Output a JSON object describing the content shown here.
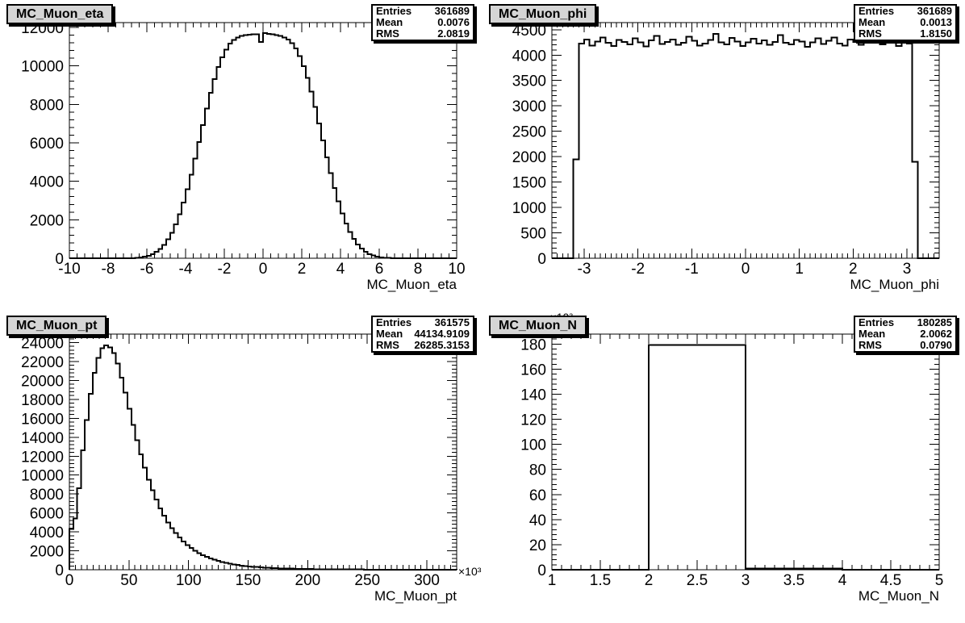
{
  "ui": {
    "stats_labels": {
      "entries": "Entries",
      "mean": "Mean",
      "rms": "RMS"
    },
    "colors": {
      "line": "#000000",
      "title_pave_bg": "#d5d5d5",
      "pave_border": "#000000",
      "background": "#ffffff"
    }
  },
  "chart_data": [
    {
      "type": "bar",
      "style": "step-histogram",
      "title": "MC_Muon_eta",
      "xlabel": "MC_Muon_eta",
      "ylabel": "",
      "xlim": [
        -10,
        10
      ],
      "ylim": [
        0,
        12250
      ],
      "x_major": 2,
      "x_minor_div": 5,
      "y_major": 2000,
      "y_minor_div": 5,
      "x_exponent": "",
      "y_exponent": "",
      "grid": false,
      "legend": "none",
      "bin_start": -10,
      "bin_width": 0.2,
      "values": [
        0,
        0,
        0,
        0,
        0,
        0,
        0,
        0,
        0,
        0,
        0,
        0,
        0,
        0,
        0,
        0,
        0,
        20,
        45,
        80,
        135,
        215,
        330,
        490,
        700,
        980,
        1330,
        1760,
        2280,
        2890,
        3580,
        4350,
        5180,
        6050,
        6930,
        7790,
        8600,
        9320,
        9940,
        10450,
        10850,
        11150,
        11350,
        11480,
        11560,
        11600,
        11630,
        11640,
        11650,
        11250,
        11700,
        11660,
        11640,
        11600,
        11550,
        11480,
        11370,
        11180,
        10900,
        10500,
        9990,
        9380,
        8660,
        7860,
        7000,
        6120,
        5250,
        4420,
        3650,
        2950,
        2330,
        1800,
        1360,
        1000,
        720,
        500,
        340,
        220,
        140,
        85,
        50,
        25,
        12,
        0,
        0,
        0,
        0,
        0,
        0,
        0,
        0,
        0,
        0,
        0,
        0,
        0,
        0,
        0,
        0,
        0
      ],
      "stats": {
        "entries": "361689",
        "mean": "0.0076",
        "rms": "2.0819"
      }
    },
    {
      "type": "bar",
      "style": "step-histogram",
      "title": "MC_Muon_phi",
      "xlabel": "MC_Muon_phi",
      "ylabel": "",
      "xlim": [
        -3.6,
        3.6
      ],
      "ylim": [
        0,
        4640
      ],
      "x_major": 1,
      "x_minor_div": 10,
      "y_major": 500,
      "y_minor_div": 5,
      "x_exponent": "",
      "y_exponent": "",
      "grid": false,
      "legend": "none",
      "bin_start": -3.6,
      "bin_width": 0.1,
      "values": [
        0,
        0,
        0,
        0,
        1950,
        4230,
        4310,
        4190,
        4270,
        4350,
        4240,
        4180,
        4300,
        4260,
        4210,
        4330,
        4250,
        4170,
        4290,
        4380,
        4220,
        4260,
        4310,
        4200,
        4240,
        4360,
        4280,
        4190,
        4230,
        4300,
        4420,
        4250,
        4210,
        4340,
        4270,
        4180,
        4250,
        4320,
        4230,
        4290,
        4200,
        4260,
        4390,
        4240,
        4210,
        4300,
        4270,
        4160,
        4250,
        4330,
        4220,
        4280,
        4350,
        4230,
        4190,
        4310,
        4260,
        4200,
        4290,
        4240,
        4370,
        4210,
        4250,
        4320,
        4180,
        4270,
        4230,
        1900,
        0,
        0,
        0,
        0
      ],
      "stats": {
        "entries": "361689",
        "mean": "0.0013",
        "rms": "1.8150"
      }
    },
    {
      "type": "bar",
      "style": "step-histogram",
      "title": "MC_Muon_pt",
      "xlabel": "MC_Muon_pt",
      "ylabel": "",
      "xlim": [
        0,
        325
      ],
      "ylim": [
        0,
        24900
      ],
      "x_major": 50,
      "x_minor_div": 10,
      "y_major": 2000,
      "y_minor_div": 5,
      "x_exponent": "×10³",
      "y_exponent": "",
      "grid": false,
      "legend": "none",
      "bin_start": 0,
      "bin_width": 3.25,
      "values": [
        4300,
        5400,
        8600,
        12600,
        15800,
        18600,
        20800,
        22400,
        23400,
        23700,
        23500,
        22900,
        21800,
        20300,
        18700,
        17000,
        15300,
        13700,
        12200,
        10800,
        9500,
        8400,
        7400,
        6500,
        5700,
        5000,
        4400,
        3900,
        3400,
        3000,
        2600,
        2300,
        2000,
        1750,
        1550,
        1350,
        1200,
        1050,
        930,
        820,
        720,
        640,
        560,
        500,
        440,
        390,
        350,
        310,
        280,
        250,
        220,
        200,
        180,
        160,
        145,
        130,
        120,
        108,
        98,
        90,
        82,
        75,
        68,
        62,
        57,
        52,
        48,
        44,
        40,
        37,
        34,
        31,
        29,
        27,
        25,
        23,
        21,
        20,
        18,
        17,
        16,
        15,
        14,
        13,
        12,
        11,
        10,
        10,
        9,
        9,
        8,
        8,
        7,
        7,
        6,
        6,
        5,
        5,
        5,
        4
      ],
      "stats": {
        "entries": "361575",
        "mean": "44134.9109",
        "rms": "26285.3153"
      }
    },
    {
      "type": "bar",
      "style": "step-histogram",
      "title": "MC_Muon_N",
      "xlabel": "MC_Muon_N",
      "ylabel": "",
      "xlim": [
        1,
        5
      ],
      "ylim": [
        0,
        188
      ],
      "x_major": 0.5,
      "x_minor_div": 5,
      "y_major": 20,
      "y_minor_div": 5,
      "x_exponent": "",
      "y_exponent": "×10³",
      "grid": false,
      "legend": "none",
      "bin_start": 1,
      "bin_width": 0.1,
      "values": [
        0,
        0,
        0,
        0,
        0,
        0,
        0,
        0,
        0,
        0,
        179.2,
        179.2,
        179.2,
        179.2,
        179.2,
        179.2,
        179.2,
        179.2,
        179.2,
        179.2,
        1.1,
        1.1,
        1.1,
        1.1,
        1.1,
        1.1,
        1.1,
        1.1,
        1.1,
        1.1,
        0,
        0,
        0,
        0,
        0,
        0,
        0,
        0,
        0,
        0
      ],
      "stats": {
        "entries": "180285",
        "mean": "2.0062",
        "rms": "0.0790"
      }
    }
  ]
}
